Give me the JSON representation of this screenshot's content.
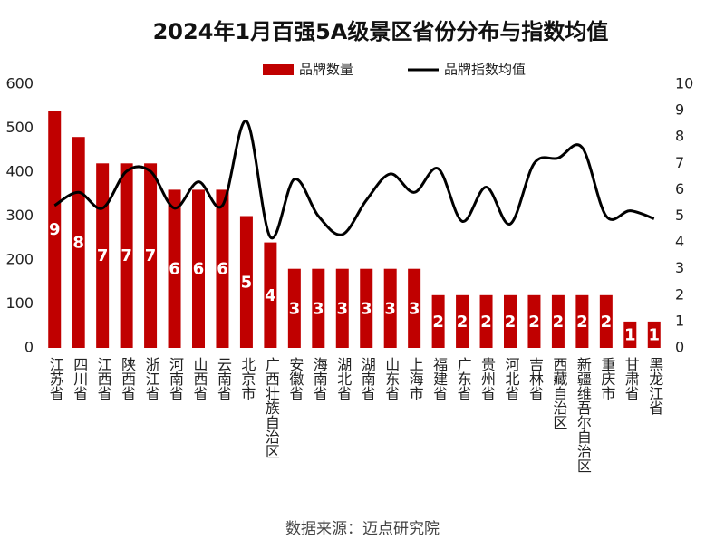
{
  "chart_data": {
    "type": "bar_line",
    "title": "2024年1月百强5A级景区省份分布与指数均值",
    "source": "数据来源：迈点研究院",
    "categories": [
      "江苏省",
      "四川省",
      "江西省",
      "陕西省",
      "浙江省",
      "河南省",
      "山西省",
      "云南省",
      "北京市",
      "广西壮族自治区",
      "安徽省",
      "海南省",
      "湖北省",
      "湖南省",
      "山东省",
      "上海市",
      "福建省",
      "广东省",
      "贵州省",
      "河北省",
      "吉林省",
      "西藏自治区",
      "新疆维吾尔自治区",
      "重庆市",
      "甘肃省",
      "黑龙江省"
    ],
    "series": [
      {
        "name": "品牌数量",
        "color": "#c00000",
        "kind": "bar",
        "values": [
          540,
          480,
          420,
          420,
          420,
          360,
          360,
          360,
          300,
          240,
          180,
          180,
          180,
          180,
          180,
          180,
          120,
          120,
          120,
          120,
          120,
          120,
          120,
          120,
          60,
          60
        ],
        "data_labels": [
          9,
          8,
          7,
          7,
          7,
          6,
          6,
          6,
          5,
          4,
          3,
          3,
          3,
          3,
          3,
          3,
          2,
          2,
          2,
          2,
          2,
          2,
          2,
          2,
          1,
          1
        ]
      },
      {
        "name": "品牌指数均值",
        "color": "#000000",
        "kind": "line",
        "axis": "y2",
        "values": [
          5.4,
          5.9,
          5.3,
          6.7,
          6.7,
          5.3,
          6.3,
          5.4,
          8.6,
          4.2,
          6.4,
          5.0,
          4.3,
          5.6,
          6.6,
          5.9,
          6.8,
          4.8,
          6.1,
          4.7,
          7.0,
          7.2,
          7.6,
          5.0,
          5.2,
          4.9
        ]
      }
    ],
    "ylim": [
      0,
      600
    ],
    "yticks": [
      0,
      100,
      200,
      300,
      400,
      500,
      600
    ],
    "y2lim": [
      0,
      10
    ],
    "y2ticks": [
      0,
      1,
      2,
      3,
      4,
      5,
      6,
      7,
      8,
      9,
      10
    ]
  }
}
